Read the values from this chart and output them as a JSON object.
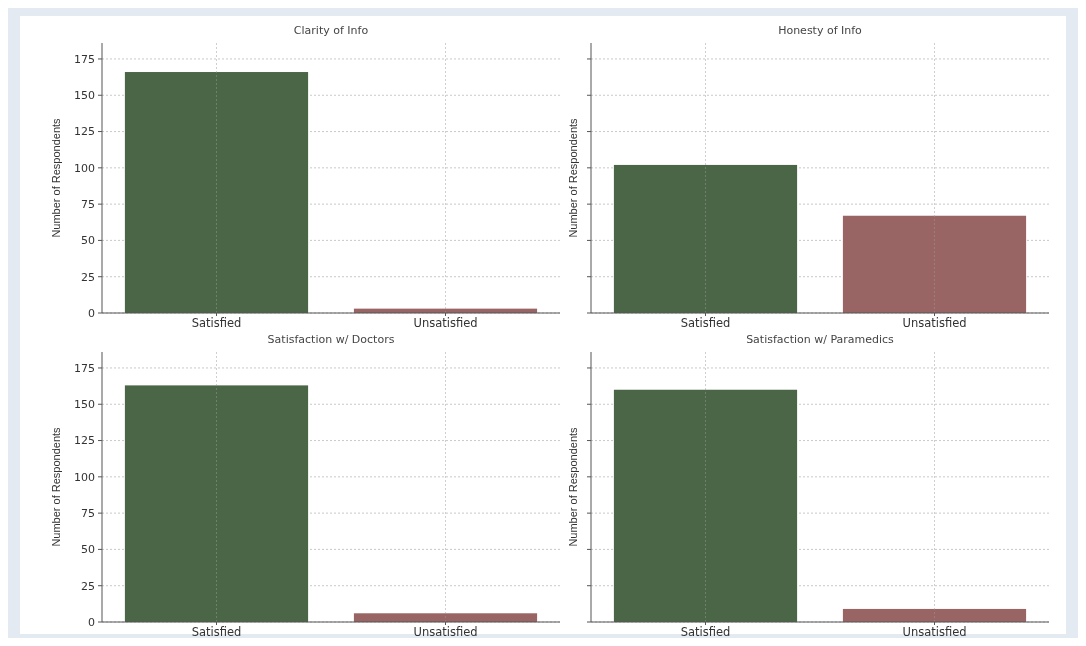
{
  "chart_data": [
    {
      "type": "bar",
      "title": "Clarity of Info",
      "ylabel": "Number of Respondents",
      "categories": [
        "Satisfied",
        "Unsatisfied"
      ],
      "values": [
        166,
        3
      ],
      "colors": [
        "#4a6646",
        "#996564"
      ],
      "ylim": [
        0,
        186
      ],
      "yticks": [
        0,
        25,
        50,
        75,
        100,
        125,
        150,
        175
      ],
      "grid": true
    },
    {
      "type": "bar",
      "title": "Honesty of Info",
      "ylabel": "Number of Respondents",
      "categories": [
        "Satisfied",
        "Unsatisfied"
      ],
      "values": [
        102,
        67
      ],
      "colors": [
        "#4a6646",
        "#996564"
      ],
      "ylim": [
        0,
        186
      ],
      "yticks": [
        0,
        25,
        50,
        75,
        100,
        125,
        150,
        175
      ],
      "grid": true,
      "tick_labels": "x"
    },
    {
      "type": "bar",
      "title": "Satisfaction w/ Doctors",
      "ylabel": "Number of Respondents",
      "categories": [
        "Satisfied",
        "Unsatisfied"
      ],
      "values": [
        163,
        6
      ],
      "colors": [
        "#4a6646",
        "#996564"
      ],
      "ylim": [
        0,
        186
      ],
      "yticks": [
        0,
        25,
        50,
        75,
        100,
        125,
        150,
        175
      ],
      "grid": true
    },
    {
      "type": "bar",
      "title": "Satisfaction w/ Paramedics",
      "ylabel": "Number of Respondents",
      "categories": [
        "Satisfied",
        "Unsatisfied"
      ],
      "values": [
        160,
        9
      ],
      "colors": [
        "#4a6646",
        "#996564"
      ],
      "ylim": [
        0,
        186
      ],
      "yticks": [
        0,
        25,
        50,
        75,
        100,
        125,
        150,
        175
      ],
      "grid": true,
      "tick_labels": "x"
    }
  ]
}
